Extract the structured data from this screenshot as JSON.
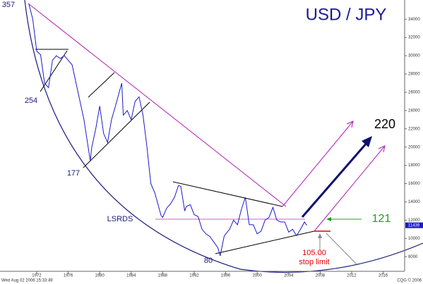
{
  "chart_data": {
    "type": "line",
    "title": "USD / JPY",
    "color": "#1a1acc",
    "x": [
      1971.0,
      1971.5,
      1972.0,
      1972.5,
      1973.0,
      1973.5,
      1974.0,
      1974.5,
      1975.0,
      1975.5,
      1976.0,
      1976.5,
      1977.0,
      1977.5,
      1978.0,
      1978.8,
      1979.0,
      1979.5,
      1980.0,
      1980.5,
      1981.0,
      1981.5,
      1982.0,
      1982.8,
      1983.0,
      1983.5,
      1984.0,
      1984.5,
      1985.0,
      1985.5,
      1986.0,
      1986.5,
      1987.0,
      1987.8,
      1988.0,
      1988.5,
      1989.0,
      1989.5,
      1990.0,
      1990.3,
      1990.8,
      1991.0,
      1991.5,
      1992.0,
      1992.5,
      1993.0,
      1993.5,
      1994.0,
      1995.0,
      1995.3,
      1995.8,
      1996.0,
      1996.5,
      1997.0,
      1997.5,
      1998.0,
      1998.5,
      1999.0,
      1999.5,
      2000.0,
      2000.5,
      2001.0,
      2001.5,
      2002.0,
      2002.5,
      2003.0,
      2003.5,
      2004.0,
      2004.5,
      2005.0,
      2005.5,
      2006.0,
      2006.3
    ],
    "values": [
      35700,
      34000,
      30500,
      30100,
      27000,
      26500,
      29500,
      30000,
      29700,
      30000,
      29500,
      29000,
      27000,
      25000,
      23000,
      18500,
      20000,
      22000,
      24500,
      21500,
      20500,
      23000,
      24500,
      27000,
      23500,
      24000,
      23000,
      25000,
      25500,
      23500,
      20000,
      16000,
      15000,
      12500,
      12300,
      13300,
      13800,
      14500,
      15800,
      15700,
      13000,
      13500,
      13700,
      12600,
      12400,
      11000,
      10500,
      10200,
      9000,
      8100,
      10200,
      10500,
      11000,
      12000,
      11500,
      13200,
      14500,
      11500,
      11500,
      10500,
      10800,
      12000,
      12300,
      13400,
      12000,
      11800,
      11800,
      10700,
      11000,
      10300,
      11000,
      11800,
      11439
    ],
    "last_label": "11439",
    "xlim": [
      1967.34,
      2018.73
    ],
    "ylim": [
      6400,
      36100
    ],
    "xticks": [
      1972,
      1976,
      1980,
      1984,
      1988,
      1992,
      1996,
      2000,
      2004,
      2008,
      2012,
      2016
    ],
    "yticks": [
      8000,
      10000,
      12000,
      14000,
      16000,
      18000,
      20000,
      22000,
      24000,
      26000,
      28000,
      30000,
      32000,
      34000
    ],
    "annotations": [
      "357",
      "254",
      "177",
      "80",
      "LSRDS",
      "220",
      "121",
      "105.00",
      "stop limit"
    ],
    "footer_left": "Wed Aug 02 2006 15:33:49",
    "footer_right": "CQG © 2006"
  }
}
